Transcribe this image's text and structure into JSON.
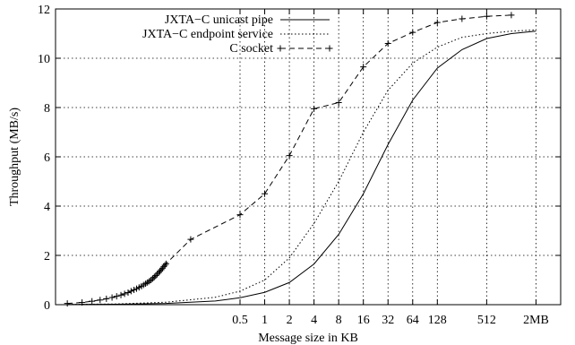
{
  "chart_data": {
    "type": "line",
    "xlabel": "Message size in KB",
    "ylabel": "Throughput (MB/s)",
    "x_scale": "log2",
    "xlim": [
      0.0028,
      4096
    ],
    "ylim": [
      0,
      12
    ],
    "grid": true,
    "legend_position": "top-left",
    "x_tick_labels": [
      "0.5",
      "1",
      "2",
      "4",
      "8",
      "16",
      "32",
      "64",
      "128",
      "512",
      "2MB"
    ],
    "x_tick_values": [
      0.5,
      1,
      2,
      4,
      8,
      16,
      32,
      64,
      128,
      512,
      2048
    ],
    "y_ticks": [
      0,
      2,
      4,
      6,
      8,
      10,
      12
    ],
    "series": [
      {
        "name": "JXTA−C unicast pipe",
        "style": "solid",
        "color": "#000000",
        "points": [
          {
            "x": 0.004,
            "y": 0.01
          },
          {
            "x": 0.0156,
            "y": 0.02
          },
          {
            "x": 0.0625,
            "y": 0.05
          },
          {
            "x": 0.25,
            "y": 0.15
          },
          {
            "x": 0.5,
            "y": 0.28
          },
          {
            "x": 1,
            "y": 0.5
          },
          {
            "x": 2,
            "y": 0.9
          },
          {
            "x": 4,
            "y": 1.65
          },
          {
            "x": 8,
            "y": 2.85
          },
          {
            "x": 16,
            "y": 4.5
          },
          {
            "x": 32,
            "y": 6.5
          },
          {
            "x": 64,
            "y": 8.3
          },
          {
            "x": 128,
            "y": 9.6
          },
          {
            "x": 256,
            "y": 10.35
          },
          {
            "x": 512,
            "y": 10.8
          },
          {
            "x": 1024,
            "y": 11.0
          },
          {
            "x": 2048,
            "y": 11.1
          }
        ]
      },
      {
        "name": "JXTA−C endpoint service",
        "style": "dotted",
        "color": "#000000",
        "points": [
          {
            "x": 0.004,
            "y": 0.01
          },
          {
            "x": 0.0156,
            "y": 0.03
          },
          {
            "x": 0.0625,
            "y": 0.1
          },
          {
            "x": 0.25,
            "y": 0.3
          },
          {
            "x": 0.5,
            "y": 0.55
          },
          {
            "x": 1,
            "y": 1.0
          },
          {
            "x": 2,
            "y": 1.9
          },
          {
            "x": 4,
            "y": 3.3
          },
          {
            "x": 8,
            "y": 5.0
          },
          {
            "x": 16,
            "y": 7.0
          },
          {
            "x": 32,
            "y": 8.7
          },
          {
            "x": 64,
            "y": 9.8
          },
          {
            "x": 128,
            "y": 10.45
          },
          {
            "x": 256,
            "y": 10.85
          },
          {
            "x": 512,
            "y": 11.0
          },
          {
            "x": 1024,
            "y": 11.1
          },
          {
            "x": 2048,
            "y": 11.15
          }
        ]
      },
      {
        "name": "C socket",
        "style": "dashed-plus",
        "color": "#000000",
        "points": [
          {
            "x": 0.0039,
            "y": 0.05
          },
          {
            "x": 0.0059,
            "y": 0.09
          },
          {
            "x": 0.0078,
            "y": 0.14
          },
          {
            "x": 0.0098,
            "y": 0.19
          },
          {
            "x": 0.0117,
            "y": 0.24
          },
          {
            "x": 0.0137,
            "y": 0.29
          },
          {
            "x": 0.0156,
            "y": 0.34
          },
          {
            "x": 0.0176,
            "y": 0.39
          },
          {
            "x": 0.0195,
            "y": 0.44
          },
          {
            "x": 0.0215,
            "y": 0.49
          },
          {
            "x": 0.0234,
            "y": 0.55
          },
          {
            "x": 0.0254,
            "y": 0.6
          },
          {
            "x": 0.0273,
            "y": 0.65
          },
          {
            "x": 0.0293,
            "y": 0.7
          },
          {
            "x": 0.0313,
            "y": 0.75
          },
          {
            "x": 0.0332,
            "y": 0.8
          },
          {
            "x": 0.0352,
            "y": 0.85
          },
          {
            "x": 0.0371,
            "y": 0.9
          },
          {
            "x": 0.0391,
            "y": 0.95
          },
          {
            "x": 0.041,
            "y": 1.0
          },
          {
            "x": 0.043,
            "y": 1.06
          },
          {
            "x": 0.0449,
            "y": 1.12
          },
          {
            "x": 0.0469,
            "y": 1.18
          },
          {
            "x": 0.0488,
            "y": 1.24
          },
          {
            "x": 0.0508,
            "y": 1.3
          },
          {
            "x": 0.0527,
            "y": 1.36
          },
          {
            "x": 0.0547,
            "y": 1.42
          },
          {
            "x": 0.0566,
            "y": 1.48
          },
          {
            "x": 0.0586,
            "y": 1.54
          },
          {
            "x": 0.0605,
            "y": 1.6
          },
          {
            "x": 0.0625,
            "y": 1.66
          },
          {
            "x": 0.125,
            "y": 2.65
          },
          {
            "x": 0.5,
            "y": 3.65
          },
          {
            "x": 1,
            "y": 4.5
          },
          {
            "x": 2,
            "y": 6.05
          },
          {
            "x": 4,
            "y": 7.95
          },
          {
            "x": 8,
            "y": 8.2
          },
          {
            "x": 16,
            "y": 9.65
          },
          {
            "x": 32,
            "y": 10.6
          },
          {
            "x": 64,
            "y": 11.05
          },
          {
            "x": 128,
            "y": 11.45
          },
          {
            "x": 256,
            "y": 11.6
          },
          {
            "x": 512,
            "y": 11.7
          },
          {
            "x": 1024,
            "y": 11.75
          }
        ]
      }
    ]
  }
}
